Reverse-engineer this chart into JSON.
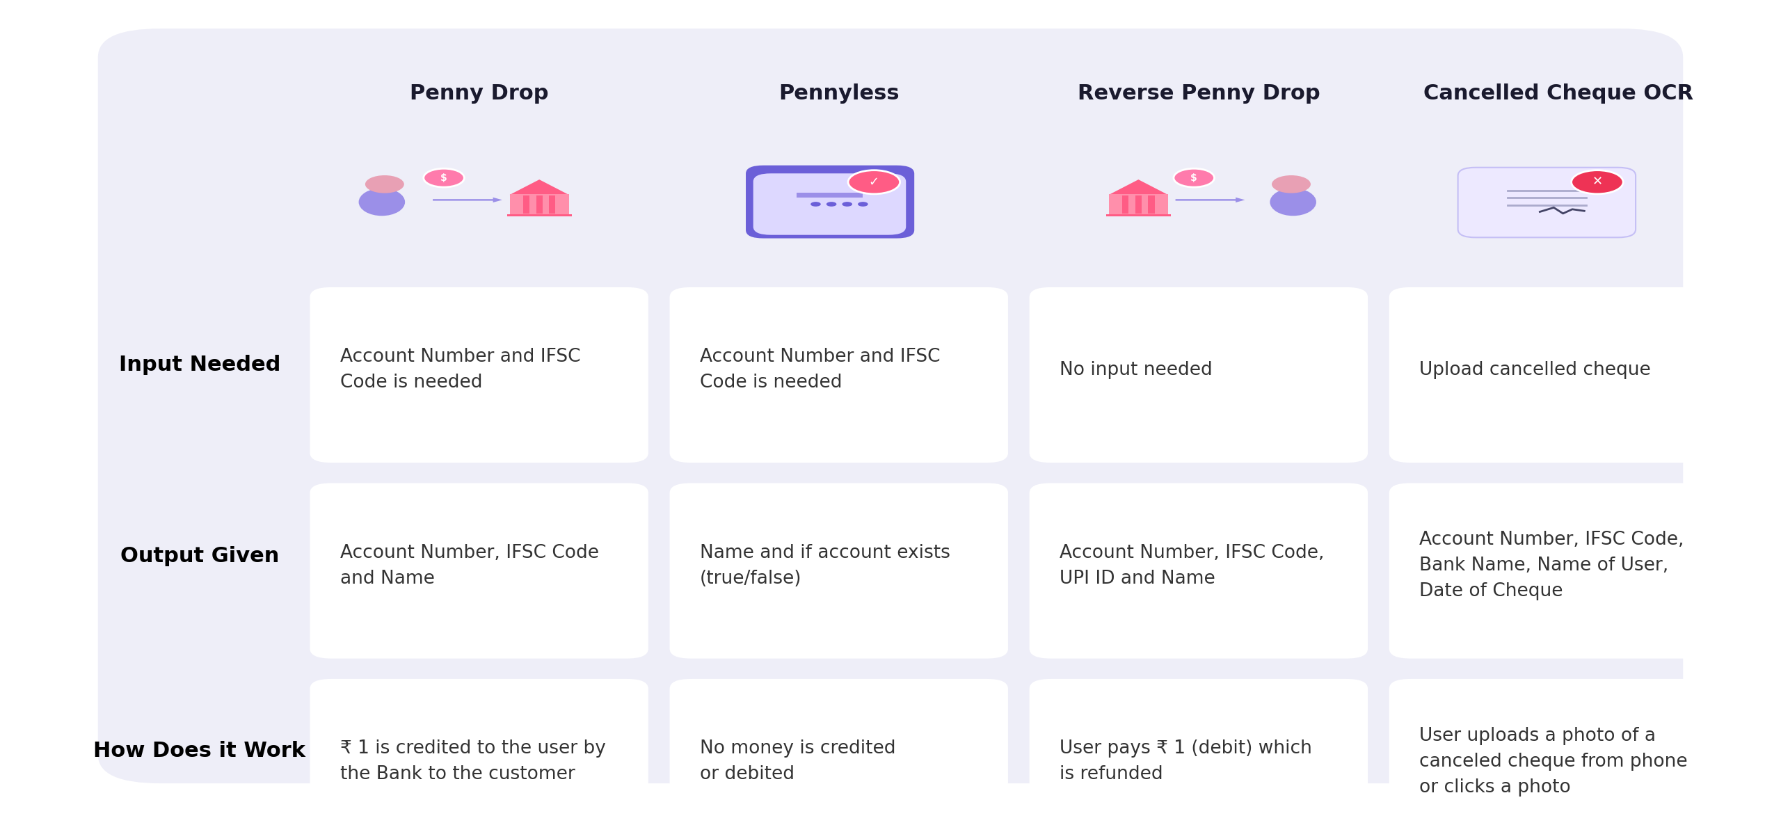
{
  "bg_color": "#EEEEF8",
  "card_color": "#FFFFFF",
  "outer_bg": "#FFFFFF",
  "title_color": "#1a1a2e",
  "row_label_color": "#000000",
  "cell_text_color": "#333333",
  "columns": [
    "Penny Drop",
    "Pennyless",
    "Reverse Penny Drop",
    "Cancelled Cheque OCR"
  ],
  "row_labels": [
    "Input Needed",
    "Output Given",
    "How Does it Work"
  ],
  "cells": [
    [
      "Account Number and IFSC\nCode is needed",
      "Account Number and IFSC\nCode is needed",
      "No input needed",
      "Upload cancelled cheque"
    ],
    [
      "Account Number, IFSC Code\nand Name",
      "Name and if account exists\n(true/false)",
      "Account Number, IFSC Code,\nUPI ID and Name",
      "Account Number, IFSC Code,\nBank Name, Name of User,\nDate of Cheque"
    ],
    [
      "₹ 1 is credited to the user by\nthe Bank to the customer",
      "No money is credited\nor debited",
      "User pays ₹ 1 (debit) which\nis refunded",
      "User uploads a photo of a\ncanceled cheque from phone\nor clicks a photo"
    ]
  ],
  "col_title_fontsize": 22,
  "row_label_fontsize": 22,
  "cell_text_fontsize": 19
}
